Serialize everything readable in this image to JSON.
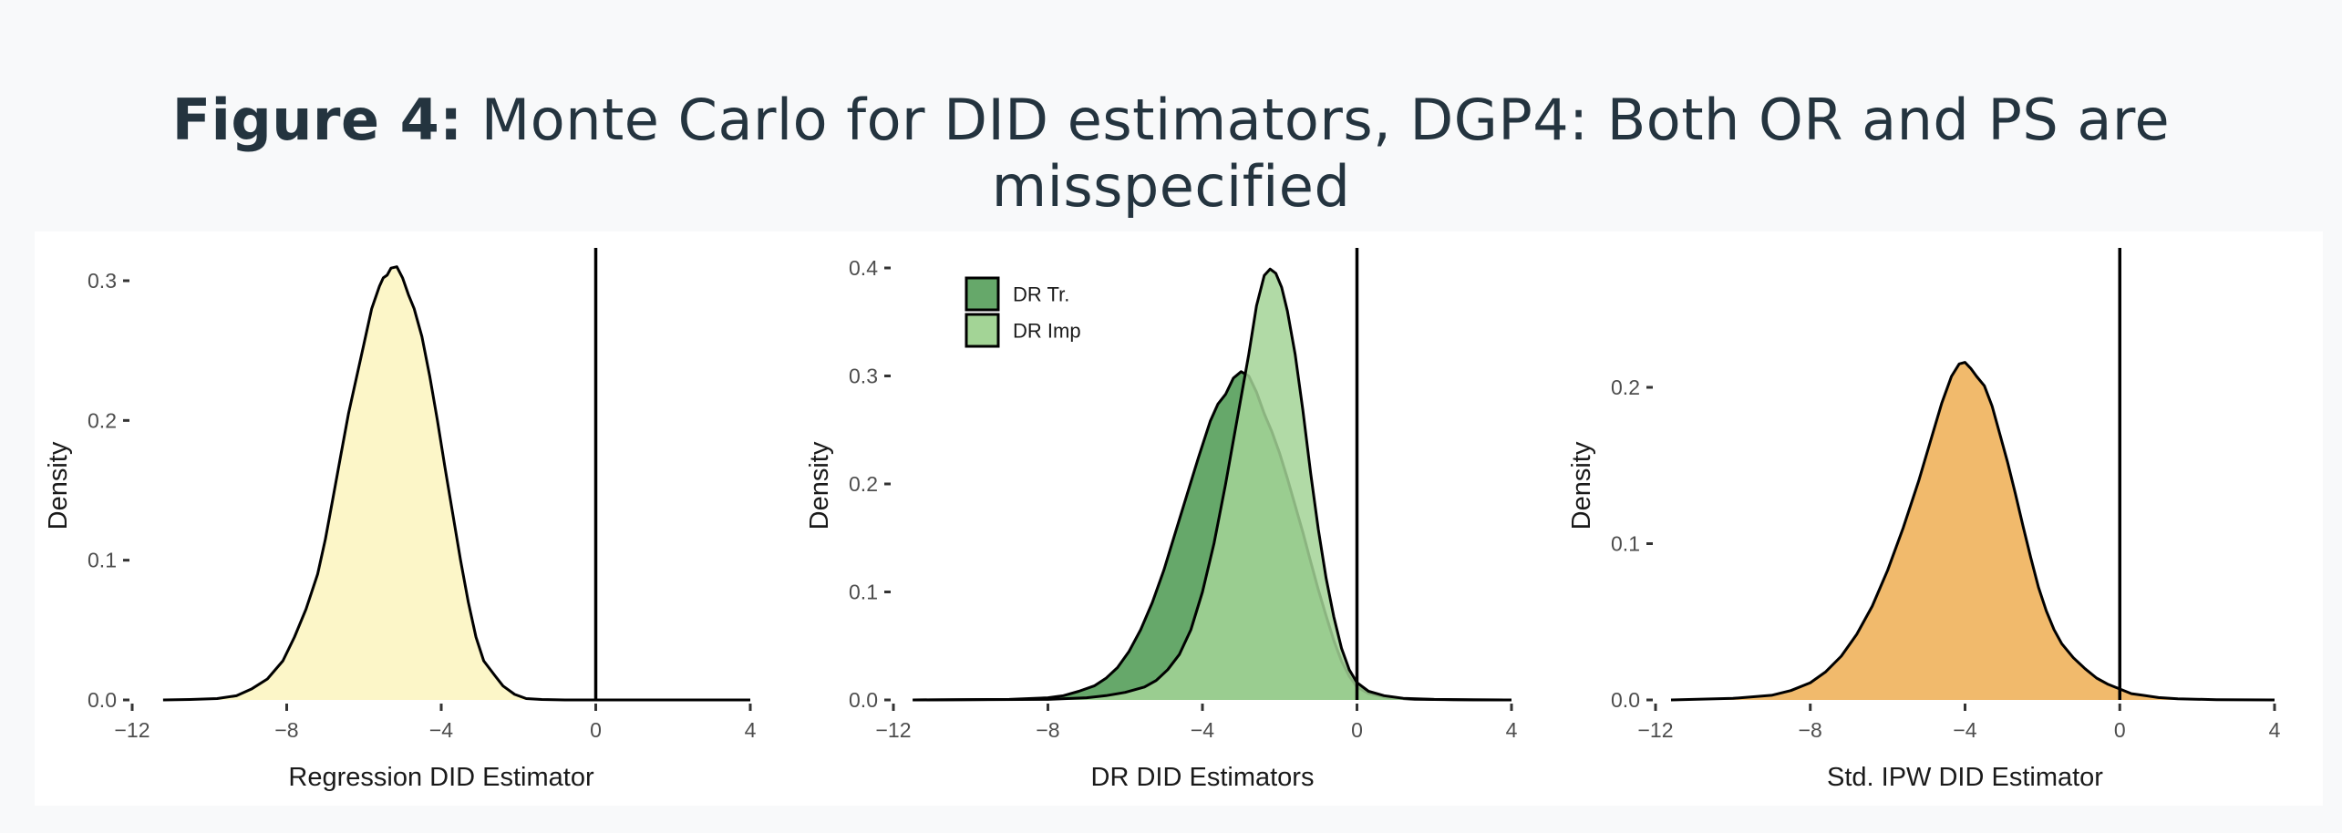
{
  "figure": {
    "title_bold": "Figure 4:",
    "title_rest": " Monte Carlo for DID estimators, DGP4: Both OR and PS are misspecified"
  },
  "chart_data": [
    {
      "type": "area",
      "xlabel": "Regression DID Estimator",
      "ylabel": "Density",
      "xlim": [
        -12,
        4
      ],
      "xticks": [
        "−12",
        "−8",
        "−4",
        "0",
        "4"
      ],
      "ylim": [
        0,
        0.3
      ],
      "yticks": [
        "0.0",
        "0.1",
        "0.2",
        "0.3"
      ],
      "vline": 0,
      "grid": false,
      "series": [
        {
          "fill": "#fcf6c8",
          "x": [
            -11.2,
            -10.5,
            -9.8,
            -9.3,
            -8.9,
            -8.5,
            -8.1,
            -7.8,
            -7.5,
            -7.2,
            -7.0,
            -6.8,
            -6.6,
            -6.4,
            -6.2,
            -6.0,
            -5.8,
            -5.6,
            -5.5,
            -5.4,
            -5.3,
            -5.15,
            -5.0,
            -4.85,
            -4.7,
            -4.5,
            -4.3,
            -4.1,
            -3.9,
            -3.7,
            -3.5,
            -3.3,
            -3.1,
            -2.9,
            -2.6,
            -2.4,
            -2.1,
            -1.8,
            -1.4,
            -0.8,
            0,
            2,
            4
          ],
          "y": [
            0.0,
            0.0003,
            0.001,
            0.003,
            0.008,
            0.015,
            0.028,
            0.045,
            0.065,
            0.09,
            0.115,
            0.145,
            0.175,
            0.205,
            0.23,
            0.255,
            0.28,
            0.296,
            0.302,
            0.304,
            0.309,
            0.31,
            0.302,
            0.29,
            0.28,
            0.26,
            0.232,
            0.2,
            0.166,
            0.133,
            0.1,
            0.07,
            0.045,
            0.028,
            0.017,
            0.01,
            0.004,
            0.001,
            0.0003,
            0.0,
            0.0,
            0.0,
            0.0
          ]
        }
      ]
    },
    {
      "type": "area",
      "xlabel": "DR DID Estimators",
      "ylabel": "Density",
      "xlim": [
        -12,
        4
      ],
      "xticks": [
        "−12",
        "−8",
        "−4",
        "0",
        "4"
      ],
      "ylim": [
        0,
        0.4
      ],
      "yticks": [
        "0.0",
        "0.1",
        "0.2",
        "0.3",
        "0.4"
      ],
      "vline": 0,
      "grid": false,
      "legend_position": "top-left",
      "series": [
        {
          "name": "DR Tr.",
          "fill": "#66a86a",
          "x": [
            -11.5,
            -9,
            -8,
            -7.6,
            -7.2,
            -6.8,
            -6.5,
            -6.2,
            -5.9,
            -5.6,
            -5.3,
            -5.0,
            -4.7,
            -4.4,
            -4.1,
            -3.8,
            -3.6,
            -3.4,
            -3.2,
            -3.0,
            -2.8,
            -2.6,
            -2.4,
            -2.2,
            -2.0,
            -1.8,
            -1.6,
            -1.4,
            -1.2,
            -1.0,
            -0.8,
            -0.6,
            -0.4,
            -0.2,
            0,
            0.3,
            0.8,
            1.5,
            2.5,
            4
          ],
          "y": [
            0.0,
            0.0005,
            0.002,
            0.004,
            0.008,
            0.013,
            0.02,
            0.03,
            0.045,
            0.065,
            0.09,
            0.12,
            0.155,
            0.19,
            0.225,
            0.258,
            0.274,
            0.283,
            0.298,
            0.304,
            0.3,
            0.285,
            0.265,
            0.248,
            0.228,
            0.205,
            0.18,
            0.155,
            0.128,
            0.102,
            0.078,
            0.055,
            0.036,
            0.022,
            0.012,
            0.006,
            0.002,
            0.0007,
            0.0002,
            0.0
          ]
        },
        {
          "name": "DR Imp",
          "fill": "#a3d496",
          "x": [
            -11.5,
            -8,
            -7,
            -6.5,
            -6.0,
            -5.5,
            -5.2,
            -4.9,
            -4.6,
            -4.3,
            -4.0,
            -3.7,
            -3.4,
            -3.1,
            -2.8,
            -2.6,
            -2.4,
            -2.25,
            -2.1,
            -1.95,
            -1.8,
            -1.6,
            -1.4,
            -1.2,
            -1.0,
            -0.8,
            -0.6,
            -0.4,
            -0.2,
            0,
            0.3,
            0.7,
            1.2,
            2,
            3,
            4
          ],
          "y": [
            0.0,
            0.0005,
            0.002,
            0.004,
            0.007,
            0.012,
            0.018,
            0.028,
            0.042,
            0.065,
            0.1,
            0.145,
            0.2,
            0.26,
            0.32,
            0.365,
            0.393,
            0.399,
            0.395,
            0.382,
            0.36,
            0.32,
            0.268,
            0.21,
            0.158,
            0.113,
            0.077,
            0.048,
            0.028,
            0.016,
            0.008,
            0.004,
            0.0015,
            0.0005,
            0.0001,
            0.0
          ]
        }
      ]
    },
    {
      "type": "area",
      "xlabel": "Std. IPW DID Estimator",
      "ylabel": "Density",
      "xlim": [
        -12,
        4
      ],
      "xticks": [
        "−12",
        "−8",
        "−4",
        "0",
        "4"
      ],
      "ylim": [
        0,
        0.2
      ],
      "yticks": [
        "0.0",
        "0.1",
        "0.2"
      ],
      "vline": 0,
      "grid": false,
      "series": [
        {
          "fill": "#f1ba6c",
          "x": [
            -11.6,
            -10,
            -9,
            -8.5,
            -8.0,
            -7.6,
            -7.2,
            -6.8,
            -6.4,
            -6.0,
            -5.6,
            -5.2,
            -4.9,
            -4.6,
            -4.35,
            -4.15,
            -4.0,
            -3.85,
            -3.7,
            -3.5,
            -3.3,
            -3.1,
            -2.9,
            -2.7,
            -2.5,
            -2.3,
            -2.1,
            -1.9,
            -1.7,
            -1.5,
            -1.2,
            -0.9,
            -0.6,
            -0.3,
            0,
            0.3,
            0.6,
            1.0,
            1.5,
            2.5,
            4
          ],
          "y": [
            0.0,
            0.001,
            0.003,
            0.006,
            0.011,
            0.018,
            0.028,
            0.042,
            0.06,
            0.083,
            0.11,
            0.14,
            0.165,
            0.19,
            0.207,
            0.215,
            0.216,
            0.212,
            0.207,
            0.201,
            0.188,
            0.17,
            0.152,
            0.132,
            0.111,
            0.091,
            0.072,
            0.057,
            0.045,
            0.036,
            0.027,
            0.02,
            0.014,
            0.01,
            0.007,
            0.004,
            0.003,
            0.0015,
            0.0007,
            0.0002,
            0.0
          ]
        }
      ]
    }
  ]
}
